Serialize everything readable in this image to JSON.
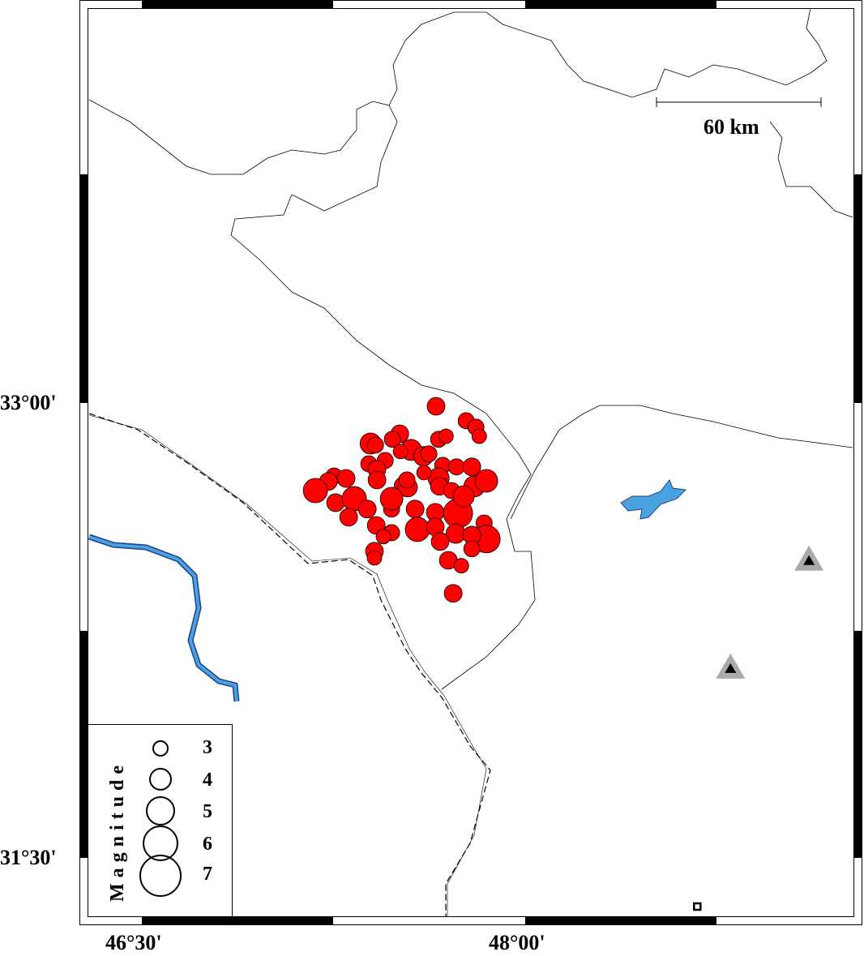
{
  "map": {
    "lon_range": [
      46.2875,
      49.284
    ],
    "lat_range": [
      31.307,
      34.302
    ],
    "colors": {
      "event": "#ff0000",
      "water": "#4aa3df",
      "water_outline": "#1a3f8f",
      "volcano_halo": "#aaaaaa",
      "volcano": "#000000"
    },
    "axis_labels": {
      "lon": [
        {
          "value": 46.5,
          "text": "46°30'"
        },
        {
          "value": 48.0,
          "text": "48°00'"
        }
      ],
      "lat": [
        {
          "value": 33.0,
          "text": "33°00'"
        },
        {
          "value": 31.5,
          "text": "31°30'"
        }
      ]
    },
    "scale_bar": {
      "label": "60 km",
      "km": 60
    },
    "legend": {
      "title": "Magnitude",
      "entries": [
        {
          "mag": 3,
          "label": "3"
        },
        {
          "mag": 4,
          "label": "4"
        },
        {
          "mag": 5,
          "label": "5"
        },
        {
          "mag": 6,
          "label": "6"
        },
        {
          "mag": 7,
          "label": "7"
        }
      ]
    },
    "events": [
      [
        47.651,
        32.989,
        3.25
      ],
      [
        47.769,
        32.941,
        3.0
      ],
      [
        47.807,
        32.92,
        3.0
      ],
      [
        47.82,
        32.89,
        2.75
      ],
      [
        47.509,
        32.898,
        3.25
      ],
      [
        47.395,
        32.866,
        3.75
      ],
      [
        47.414,
        32.861,
        3.0
      ],
      [
        47.48,
        32.88,
        3.0
      ],
      [
        47.553,
        32.845,
        3.75
      ],
      [
        47.512,
        32.84,
        2.75
      ],
      [
        47.661,
        32.88,
        3.0
      ],
      [
        47.69,
        32.89,
        2.75
      ],
      [
        47.601,
        32.824,
        3.5
      ],
      [
        47.623,
        32.832,
        3.0
      ],
      [
        47.388,
        32.799,
        3.0
      ],
      [
        47.452,
        32.81,
        3.0
      ],
      [
        47.42,
        32.781,
        3.25
      ],
      [
        47.677,
        32.794,
        3.0
      ],
      [
        47.731,
        32.789,
        3.0
      ],
      [
        47.791,
        32.789,
        3.25
      ],
      [
        47.252,
        32.759,
        3.0
      ],
      [
        47.23,
        32.741,
        3.25
      ],
      [
        47.299,
        32.751,
        3.25
      ],
      [
        47.179,
        32.711,
        4.25
      ],
      [
        47.42,
        32.746,
        3.25
      ],
      [
        47.525,
        32.725,
        3.5
      ],
      [
        47.54,
        32.722,
        3.5
      ],
      [
        47.661,
        32.751,
        3.75
      ],
      [
        47.664,
        32.725,
        3.25
      ],
      [
        47.712,
        32.711,
        3.0
      ],
      [
        47.801,
        32.725,
        3.75
      ],
      [
        47.848,
        32.743,
        4.0
      ],
      [
        47.258,
        32.671,
        3.25
      ],
      [
        47.331,
        32.684,
        4.25
      ],
      [
        47.382,
        32.65,
        3.25
      ],
      [
        47.477,
        32.65,
        3.0
      ],
      [
        47.569,
        32.65,
        3.25
      ],
      [
        47.648,
        32.639,
        3.25
      ],
      [
        47.737,
        32.636,
        5.0
      ],
      [
        47.309,
        32.623,
        3.25
      ],
      [
        47.417,
        32.596,
        3.25
      ],
      [
        47.578,
        32.583,
        4.25
      ],
      [
        47.648,
        32.591,
        3.25
      ],
      [
        47.728,
        32.569,
        3.5
      ],
      [
        47.839,
        32.604,
        3.0
      ],
      [
        47.848,
        32.551,
        4.75
      ],
      [
        47.791,
        32.564,
        3.25
      ],
      [
        47.477,
        32.572,
        3.0
      ],
      [
        47.445,
        32.559,
        2.75
      ],
      [
        47.667,
        32.543,
        3.25
      ],
      [
        47.791,
        32.519,
        3.0
      ],
      [
        47.41,
        32.511,
        3.25
      ],
      [
        47.41,
        32.489,
        2.75
      ],
      [
        47.699,
        32.481,
        3.25
      ],
      [
        47.75,
        32.463,
        2.75
      ],
      [
        47.718,
        32.372,
        3.25
      ],
      [
        47.477,
        32.684,
        4.0
      ],
      [
        47.759,
        32.692,
        3.75
      ],
      [
        47.537,
        32.746,
        3.0
      ],
      [
        47.604,
        32.77,
        2.75
      ]
    ],
    "volcanoes": [
      [
        49.11,
        32.479
      ],
      [
        48.803,
        32.123
      ]
    ],
    "stations": [
      [
        48.673,
        31.339
      ]
    ]
  }
}
